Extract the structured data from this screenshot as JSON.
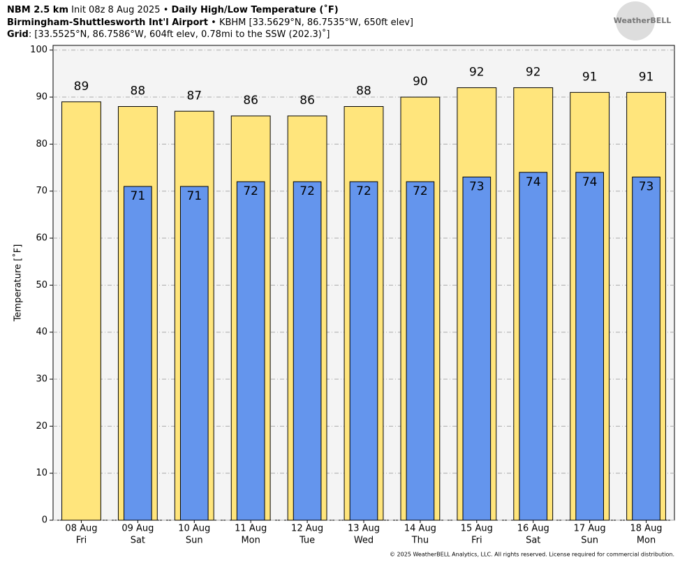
{
  "header": {
    "model": "NBM 2.5 km",
    "init": "Init 08z 8 Aug 2025 •",
    "product": "Daily High/Low Temperature (˚F)",
    "station": "Birmingham-Shuttlesworth Int'l Airport",
    "station_info": " • KBHM [33.5629°N, 86.7535°W, 650ft elev]",
    "grid_label": "Grid",
    "grid_info": ": [33.5525°N, 86.7586°W, 604ft elev, 0.78mi to the SSW (202.3)˚]"
  },
  "logo": "WeatherBELL",
  "footer": "© 2025 WeatherBELL Analytics, LLC. All rights reserved. License required for commercial distribution.",
  "chart_data": {
    "type": "bar",
    "y_label": "Temperature [˚F]",
    "categories": [
      [
        "08 Aug",
        "Fri"
      ],
      [
        "09 Aug",
        "Sat"
      ],
      [
        "10 Aug",
        "Sun"
      ],
      [
        "11 Aug",
        "Mon"
      ],
      [
        "12 Aug",
        "Tue"
      ],
      [
        "13 Aug",
        "Wed"
      ],
      [
        "14 Aug",
        "Thu"
      ],
      [
        "15 Aug",
        "Fri"
      ],
      [
        "16 Aug",
        "Sat"
      ],
      [
        "17 Aug",
        "Sun"
      ],
      [
        "18 Aug",
        "Mon"
      ]
    ],
    "series": [
      {
        "name": "High",
        "color": "#ffe57c",
        "values": [
          89,
          88,
          87,
          86,
          86,
          88,
          90,
          92,
          92,
          91,
          91
        ]
      },
      {
        "name": "Low",
        "color": "#6495ed",
        "values": [
          null,
          71,
          71,
          72,
          72,
          72,
          72,
          73,
          74,
          74,
          73
        ]
      }
    ],
    "ylim": [
      0,
      101
    ],
    "yticks": [
      0,
      10,
      20,
      30,
      40,
      50,
      60,
      70,
      80,
      90,
      100
    ],
    "grid": true
  }
}
